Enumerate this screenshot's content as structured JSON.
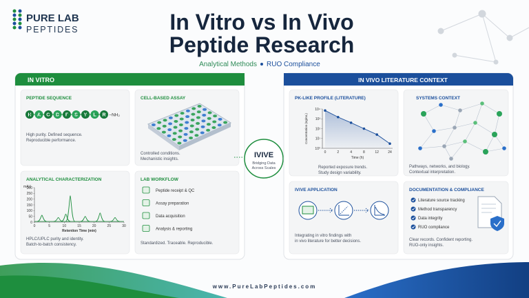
{
  "logo": {
    "line1": "PURE LAB",
    "line2": "PEPTIDES"
  },
  "title": {
    "line1": "In Vitro vs In Vivo",
    "line2": "Peptide Research"
  },
  "subtitle": [
    "Analytical Methods",
    "RUO Compliance"
  ],
  "in_vitro": {
    "header": "IN VITRO",
    "peptide_sequence": {
      "title": "PEPTIDE SEQUENCE",
      "residues": [
        "H",
        "A",
        "G",
        "D",
        "F",
        "S",
        "Y",
        "L",
        "R"
      ],
      "terminus": "–NH₂",
      "text": [
        "High purity. Defined sequence.",
        "Reproducible performance."
      ]
    },
    "cell_assay": {
      "title": "CELL-BASED ASSAY",
      "text": [
        "Controlled conditions.",
        "Mechanistic insights."
      ]
    },
    "analytical": {
      "title": "ANALYTICAL CHARACTERIZATION",
      "chart": {
        "type": "line",
        "ylabel": "mAU",
        "xlabel": "Retention Time (min)",
        "x": [
          2.5,
          8,
          10.5,
          12,
          17,
          22,
          27
        ],
        "values": [
          60,
          40,
          70,
          230,
          50,
          80,
          40
        ],
        "xlim": [
          0,
          30
        ],
        "ylim": [
          0,
          300
        ],
        "xticks": [
          0,
          5,
          10,
          15,
          20,
          25,
          30
        ],
        "yticks": [
          0,
          50,
          100,
          150,
          200,
          250,
          300
        ],
        "color": "#1e8e3e"
      },
      "text": [
        "HPLC/UPLC purity and identity.",
        "Batch-to-batch consistency."
      ]
    },
    "workflow": {
      "title": "LAB WORKFLOW",
      "steps": [
        "Peptide receipt & QC",
        "Assay preparation",
        "Data acquisition",
        "Analysis & reporting"
      ],
      "text": "Standardized. Traceable. Reproducible."
    }
  },
  "ivive": {
    "title": "IVIVE",
    "text": [
      "Bridging Data",
      "Across Scales"
    ]
  },
  "in_vivo": {
    "header": "IN VIVO LITERATURE CONTEXT",
    "pk": {
      "title": "PK-LIKE PROFILE (LITERATURE)",
      "chart": {
        "type": "line",
        "ylabel": "Concentration (ng/mL)",
        "xlabel": "Time (h)",
        "categories": [
          "0",
          "2",
          "4",
          "8",
          "12",
          "24"
        ],
        "values": [
          7000,
          1500,
          400,
          100,
          25,
          3
        ],
        "ylim": [
          1,
          10000
        ],
        "log": true,
        "color": "#1b4f9c",
        "yticks": [
          {
            "value": 1,
            "label": "10⁰"
          },
          {
            "value": 10,
            "label": "10¹"
          },
          {
            "value": 100,
            "label": "10²"
          },
          {
            "value": 1000,
            "label": "10³"
          },
          {
            "value": 10000,
            "label": "10⁴"
          }
        ]
      },
      "text": [
        "Reported exposure trends.",
        "Study design variability."
      ]
    },
    "systems": {
      "title": "SYSTEMS CONTEXT",
      "text": [
        "Pathways, networks, and biology.",
        "Contextual interpretation."
      ]
    },
    "application": {
      "title": "IVIVE APPLICATION",
      "text": [
        "Integrating in vitro findings with",
        "in vivo literature for better decisions."
      ]
    },
    "documentation": {
      "title": "DOCUMENTATION & COMPLIANCE",
      "items": [
        "Literature source tracking",
        "Method transparency",
        "Data integrity",
        "RUO compliance"
      ],
      "text": [
        "Clear records. Confident reporting.",
        "RUO-only insights."
      ]
    }
  },
  "footer": "www.PureLabPeptides.com"
}
